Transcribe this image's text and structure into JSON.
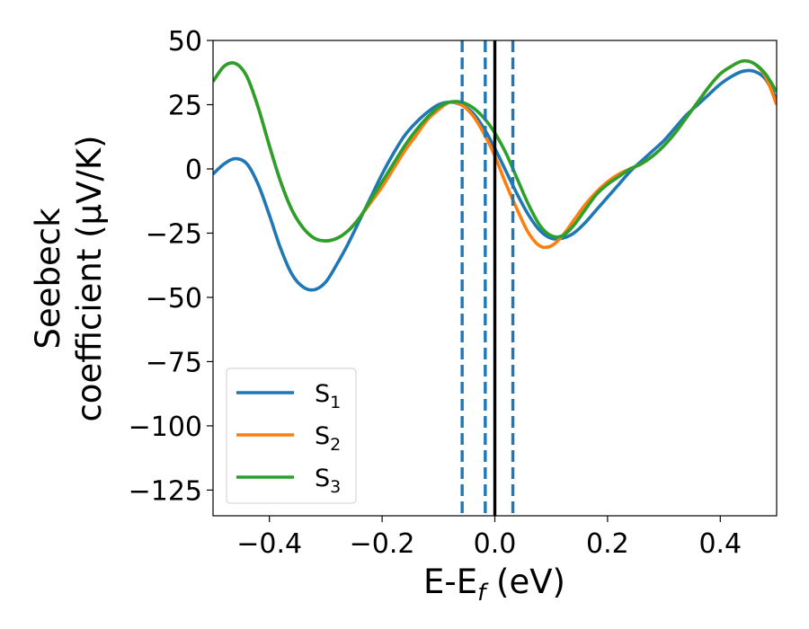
{
  "chart_data": {
    "type": "line",
    "xlabel": "E-E",
    "xlabel_sub": "f",
    "xlabel_unit": " (eV)",
    "ylabel_line1": "Seebeck",
    "ylabel_line2": "coefficient  (μV/K)",
    "xlim": [
      -0.5,
      0.5
    ],
    "ylim": [
      -135,
      50
    ],
    "xticks": [
      -0.4,
      -0.2,
      0.0,
      0.2,
      0.4
    ],
    "xtick_labels": [
      "−0.4",
      "−0.2",
      "0.0",
      "0.2",
      "0.4"
    ],
    "yticks": [
      50,
      25,
      0,
      -25,
      -50,
      -75,
      -100,
      -125
    ],
    "ytick_labels": [
      "50",
      "25",
      "0",
      "−25",
      "−50",
      "−75",
      "−100",
      "−125"
    ],
    "grid": false,
    "legend_position": "lower-left",
    "series": [
      {
        "name": "S",
        "name_sub": "1",
        "color": "#1f77b4",
        "points": [
          [
            -0.5,
            -2
          ],
          [
            -0.48,
            2
          ],
          [
            -0.46,
            4
          ],
          [
            -0.44,
            2
          ],
          [
            -0.42,
            -6
          ],
          [
            -0.4,
            -18
          ],
          [
            -0.38,
            -31
          ],
          [
            -0.36,
            -41
          ],
          [
            -0.34,
            -46
          ],
          [
            -0.32,
            -47
          ],
          [
            -0.3,
            -44
          ],
          [
            -0.28,
            -37
          ],
          [
            -0.26,
            -29
          ],
          [
            -0.24,
            -20
          ],
          [
            -0.22,
            -11
          ],
          [
            -0.2,
            -2
          ],
          [
            -0.18,
            6
          ],
          [
            -0.16,
            13
          ],
          [
            -0.14,
            18
          ],
          [
            -0.12,
            22
          ],
          [
            -0.1,
            25
          ],
          [
            -0.08,
            26
          ],
          [
            -0.06,
            25
          ],
          [
            -0.04,
            22
          ],
          [
            -0.02,
            16
          ],
          [
            0.0,
            8
          ],
          [
            0.02,
            -1
          ],
          [
            0.04,
            -10
          ],
          [
            0.06,
            -18
          ],
          [
            0.08,
            -24
          ],
          [
            0.1,
            -27
          ],
          [
            0.12,
            -27
          ],
          [
            0.14,
            -25
          ],
          [
            0.16,
            -21
          ],
          [
            0.18,
            -16
          ],
          [
            0.2,
            -11
          ],
          [
            0.22,
            -6
          ],
          [
            0.24,
            -1
          ],
          [
            0.26,
            3
          ],
          [
            0.28,
            7
          ],
          [
            0.3,
            11
          ],
          [
            0.32,
            16
          ],
          [
            0.34,
            21
          ],
          [
            0.36,
            25
          ],
          [
            0.38,
            29
          ],
          [
            0.4,
            33
          ],
          [
            0.42,
            36
          ],
          [
            0.44,
            38
          ],
          [
            0.46,
            38
          ],
          [
            0.48,
            35
          ],
          [
            0.5,
            27
          ]
        ]
      },
      {
        "name": "S",
        "name_sub": "2",
        "color": "#ff7f0e",
        "points": [
          [
            -0.5,
            34
          ],
          [
            -0.48,
            40
          ],
          [
            -0.46,
            41
          ],
          [
            -0.44,
            36
          ],
          [
            -0.42,
            24
          ],
          [
            -0.4,
            9
          ],
          [
            -0.38,
            -5
          ],
          [
            -0.36,
            -16
          ],
          [
            -0.34,
            -23
          ],
          [
            -0.32,
            -27
          ],
          [
            -0.3,
            -28
          ],
          [
            -0.28,
            -27
          ],
          [
            -0.26,
            -24
          ],
          [
            -0.24,
            -19
          ],
          [
            -0.22,
            -13
          ],
          [
            -0.2,
            -7
          ],
          [
            -0.18,
            0
          ],
          [
            -0.16,
            7
          ],
          [
            -0.14,
            13
          ],
          [
            -0.12,
            19
          ],
          [
            -0.1,
            23
          ],
          [
            -0.08,
            26
          ],
          [
            -0.06,
            25
          ],
          [
            -0.04,
            21
          ],
          [
            -0.02,
            14
          ],
          [
            0.0,
            5
          ],
          [
            0.02,
            -6
          ],
          [
            0.04,
            -16
          ],
          [
            0.06,
            -25
          ],
          [
            0.08,
            -30
          ],
          [
            0.1,
            -30
          ],
          [
            0.12,
            -26
          ],
          [
            0.14,
            -20
          ],
          [
            0.16,
            -14
          ],
          [
            0.18,
            -9
          ],
          [
            0.2,
            -5
          ],
          [
            0.22,
            -2
          ],
          [
            0.24,
            0
          ],
          [
            0.26,
            2
          ],
          [
            0.28,
            5
          ],
          [
            0.3,
            9
          ],
          [
            0.32,
            14
          ],
          [
            0.34,
            20
          ],
          [
            0.36,
            26
          ],
          [
            0.38,
            32
          ],
          [
            0.4,
            37
          ],
          [
            0.42,
            40
          ],
          [
            0.44,
            42
          ],
          [
            0.46,
            41
          ],
          [
            0.48,
            36
          ],
          [
            0.5,
            25
          ]
        ]
      },
      {
        "name": "S",
        "name_sub": "3",
        "color": "#2ca02c",
        "points": [
          [
            -0.5,
            34
          ],
          [
            -0.48,
            40
          ],
          [
            -0.46,
            41
          ],
          [
            -0.44,
            36
          ],
          [
            -0.42,
            24
          ],
          [
            -0.4,
            9
          ],
          [
            -0.38,
            -5
          ],
          [
            -0.36,
            -16
          ],
          [
            -0.34,
            -23
          ],
          [
            -0.32,
            -27
          ],
          [
            -0.3,
            -28
          ],
          [
            -0.28,
            -27
          ],
          [
            -0.26,
            -24
          ],
          [
            -0.24,
            -19
          ],
          [
            -0.22,
            -12
          ],
          [
            -0.2,
            -5
          ],
          [
            -0.18,
            2
          ],
          [
            -0.16,
            9
          ],
          [
            -0.14,
            15
          ],
          [
            -0.12,
            20
          ],
          [
            -0.1,
            24
          ],
          [
            -0.08,
            26
          ],
          [
            -0.06,
            26
          ],
          [
            -0.04,
            24
          ],
          [
            -0.02,
            20
          ],
          [
            0.0,
            14
          ],
          [
            0.02,
            6
          ],
          [
            0.04,
            -4
          ],
          [
            0.06,
            -14
          ],
          [
            0.08,
            -22
          ],
          [
            0.1,
            -26
          ],
          [
            0.12,
            -26
          ],
          [
            0.14,
            -22
          ],
          [
            0.16,
            -16
          ],
          [
            0.18,
            -10
          ],
          [
            0.2,
            -6
          ],
          [
            0.22,
            -3
          ],
          [
            0.24,
            0
          ],
          [
            0.26,
            2
          ],
          [
            0.28,
            5
          ],
          [
            0.3,
            9
          ],
          [
            0.32,
            14
          ],
          [
            0.34,
            20
          ],
          [
            0.36,
            26
          ],
          [
            0.38,
            32
          ],
          [
            0.4,
            37
          ],
          [
            0.42,
            40
          ],
          [
            0.44,
            42
          ],
          [
            0.46,
            41
          ],
          [
            0.48,
            37
          ],
          [
            0.5,
            30
          ]
        ]
      }
    ],
    "vlines": [
      {
        "x": 0.0,
        "style": "solid",
        "color": "#000000"
      },
      {
        "x": -0.058,
        "style": "dashed",
        "color": "#1f77b4"
      },
      {
        "x": -0.017,
        "style": "dashed",
        "color": "#1f77b4"
      },
      {
        "x": 0.032,
        "style": "dashed",
        "color": "#1f77b4"
      }
    ]
  }
}
